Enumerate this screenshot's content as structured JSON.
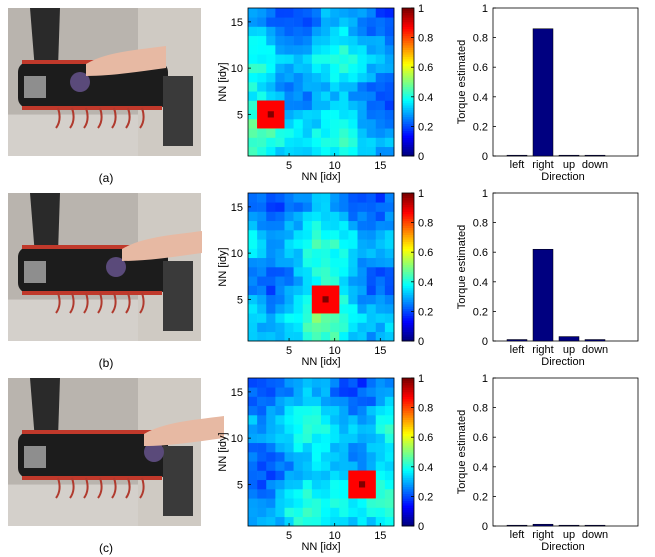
{
  "panels": [
    {
      "label": "(a)",
      "photo": {
        "description_icon": "robot-arm-photo"
      },
      "heatmap": {
        "hotspot": [
          3,
          5
        ]
      },
      "bars": {
        "values": [
          0.0,
          0.86,
          0.0,
          0.0
        ]
      }
    },
    {
      "label": "(b)",
      "photo": {
        "description_icon": "robot-arm-photo"
      },
      "heatmap": {
        "hotspot": [
          9,
          5
        ]
      },
      "bars": {
        "values": [
          0.01,
          0.62,
          0.03,
          0.01
        ]
      }
    },
    {
      "label": "(c)",
      "photo": {
        "description_icon": "robot-arm-photo"
      },
      "heatmap": {
        "hotspot": [
          13,
          5
        ]
      },
      "bars": {
        "values": [
          0.003,
          0.012,
          0.004,
          0.002
        ]
      }
    }
  ],
  "chart_data": [
    {
      "type": "heatmap",
      "panel": "(a)",
      "xlabel": "NN [idx]",
      "ylabel": "NN [idy]",
      "xticks": [
        "5",
        "10",
        "15"
      ],
      "yticks": [
        "5",
        "10",
        "15"
      ],
      "xlim": [
        0.5,
        16.5
      ],
      "ylim": [
        0.5,
        16.5
      ],
      "colorbar": {
        "ticks": [
          "0",
          "0.2",
          "0.4",
          "0.6",
          "0.8",
          "1"
        ],
        "range": [
          0,
          1
        ],
        "colormap": "jet"
      },
      "peak": {
        "x": 3,
        "y": 5,
        "value": 1.0
      },
      "background_level": 0.3
    },
    {
      "type": "bar",
      "panel": "(a)",
      "categories": [
        "left",
        "right",
        "up",
        "down"
      ],
      "values": [
        0.0,
        0.86,
        0.0,
        0.0
      ],
      "xlabel": "Direction",
      "ylabel": "Torque estimated",
      "ylim": [
        0,
        1
      ],
      "yticks": [
        "0",
        "0.2",
        "0.4",
        "0.6",
        "0.8",
        "1"
      ],
      "bar_color": "#000080"
    },
    {
      "type": "heatmap",
      "panel": "(b)",
      "xlabel": "NN [idx]",
      "ylabel": "NN [idy]",
      "xticks": [
        "5",
        "10",
        "15"
      ],
      "yticks": [
        "5",
        "10",
        "15"
      ],
      "xlim": [
        0.5,
        16.5
      ],
      "ylim": [
        0.5,
        16.5
      ],
      "colorbar": {
        "ticks": [
          "0",
          "0.2",
          "0.4",
          "0.6",
          "0.8",
          "1"
        ],
        "range": [
          0,
          1
        ],
        "colormap": "jet"
      },
      "peak": {
        "x": 9,
        "y": 5,
        "value": 1.0
      },
      "background_level": 0.3
    },
    {
      "type": "bar",
      "panel": "(b)",
      "categories": [
        "left",
        "right",
        "up",
        "down"
      ],
      "values": [
        0.01,
        0.62,
        0.03,
        0.01
      ],
      "xlabel": "Direction",
      "ylabel": "Torque estimated",
      "ylim": [
        0,
        1
      ],
      "yticks": [
        "0",
        "0.2",
        "0.4",
        "0.6",
        "0.8",
        "1"
      ],
      "bar_color": "#000080"
    },
    {
      "type": "heatmap",
      "panel": "(c)",
      "xlabel": "NN [idx]",
      "ylabel": "NN [idy]",
      "xticks": [
        "5",
        "10",
        "15"
      ],
      "yticks": [
        "5",
        "10",
        "15"
      ],
      "xlim": [
        0.5,
        16.5
      ],
      "ylim": [
        0.5,
        16.5
      ],
      "colorbar": {
        "ticks": [
          "0",
          "0.2",
          "0.4",
          "0.6",
          "0.8",
          "1"
        ],
        "range": [
          0,
          1
        ],
        "colormap": "jet"
      },
      "peak": {
        "x": 13,
        "y": 5,
        "value": 1.0
      },
      "background_level": 0.3
    },
    {
      "type": "bar",
      "panel": "(c)",
      "categories": [
        "left",
        "right",
        "up",
        "down"
      ],
      "values": [
        0.003,
        0.012,
        0.004,
        0.002
      ],
      "xlabel": "Direction",
      "ylabel": "Torque estimated",
      "ylim": [
        0,
        1
      ],
      "yticks": [
        "0",
        "0.2",
        "0.4",
        "0.6",
        "0.8",
        "1"
      ],
      "bar_color": "#000080"
    }
  ]
}
